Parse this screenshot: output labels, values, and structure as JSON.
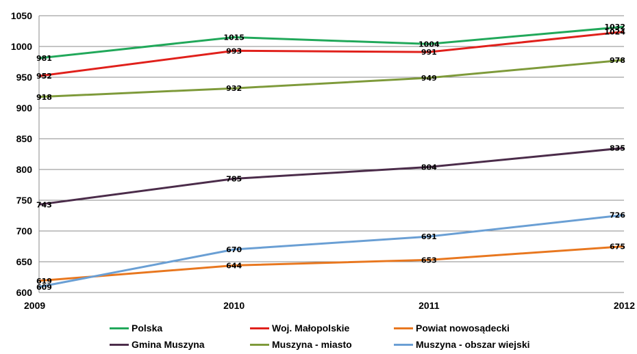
{
  "chart_data": {
    "type": "line",
    "title": "",
    "xlabel": "",
    "ylabel": "",
    "categories": [
      "2009",
      "2010",
      "2011",
      "2012"
    ],
    "ylim": [
      600,
      1050
    ],
    "yticks": [
      "600",
      "650",
      "700",
      "750",
      "800",
      "850",
      "900",
      "950",
      "1000",
      "1050"
    ],
    "grid": true,
    "legend": "bottom",
    "series": [
      {
        "name": "Polska",
        "color": "#21a85a",
        "values": [
          981,
          1015,
          1004,
          1032
        ]
      },
      {
        "name": "Woj. Małopolskie",
        "color": "#e0201b",
        "values": [
          952,
          993,
          991,
          1024
        ]
      },
      {
        "name": "Powiat nowosądecki",
        "color": "#e8771f",
        "values": [
          619,
          644,
          653,
          675
        ]
      },
      {
        "name": "Gmina Muszyna",
        "color": "#4b2c4a",
        "values": [
          743,
          785,
          804,
          835
        ]
      },
      {
        "name": "Muszyna - miasto",
        "color": "#7e9a3a",
        "values": [
          918,
          932,
          949,
          978
        ]
      },
      {
        "name": "Muszyna - obszar wiejski",
        "color": "#6a9fd4",
        "values": [
          609,
          670,
          691,
          726
        ]
      }
    ]
  }
}
